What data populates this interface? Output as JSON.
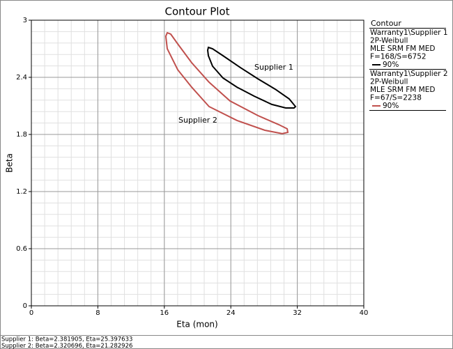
{
  "chart_data": {
    "type": "contour",
    "title": "Contour Plot",
    "xlabel": "Eta (mon)",
    "ylabel": "Beta",
    "xlim": [
      0,
      40
    ],
    "ylim": [
      0,
      3
    ],
    "xticks": [
      0,
      8,
      16,
      24,
      32,
      40
    ],
    "yticks": [
      0,
      0.6,
      1.2,
      1.8,
      2.4,
      3
    ],
    "grid": true,
    "minor_divisions": 5,
    "legend_title": "Contour",
    "series": [
      {
        "name": "Warranty1\\Supplier 1",
        "details": [
          "2P-Weibull",
          "MLE SRM FM MED",
          "F=168/S=6752"
        ],
        "level": "90%",
        "color": "#000000",
        "x": [
          21.3,
          21.8,
          23.06,
          25.16,
          27.25,
          29.35,
          31.03,
          31.78,
          31.61,
          30.61,
          28.93,
          26.83,
          24.74,
          23.06,
          21.8,
          21.3,
          21.22
        ],
        "y": [
          2.715,
          2.7,
          2.627,
          2.502,
          2.385,
          2.275,
          2.173,
          2.093,
          2.078,
          2.078,
          2.115,
          2.202,
          2.297,
          2.393,
          2.517,
          2.627,
          2.685
        ]
      },
      {
        "name": "Warranty1\\Supplier 2",
        "details": [
          "2P-Weibull",
          "MLE SRM FM MED",
          "F=67/S=2238"
        ],
        "level": "90%",
        "color": "#c0504d",
        "x": [
          16.35,
          16.18,
          16.35,
          17.61,
          19.29,
          21.38,
          24.74,
          28.09,
          30.19,
          30.86,
          30.78,
          29.77,
          27.25,
          23.9,
          21.38,
          19.29,
          17.61,
          16.77
        ],
        "y": [
          2.868,
          2.832,
          2.7,
          2.48,
          2.297,
          2.093,
          1.947,
          1.844,
          1.808,
          1.822,
          1.859,
          1.903,
          1.998,
          2.152,
          2.349,
          2.554,
          2.751,
          2.854
        ]
      }
    ],
    "annotations": [
      "Supplier 1",
      "Supplier 2"
    ],
    "footer": [
      "Supplier 1: Beta=2.381905, Eta=25.397633",
      "Supplier 2: Beta=2.320696, Eta=21.282926"
    ]
  }
}
